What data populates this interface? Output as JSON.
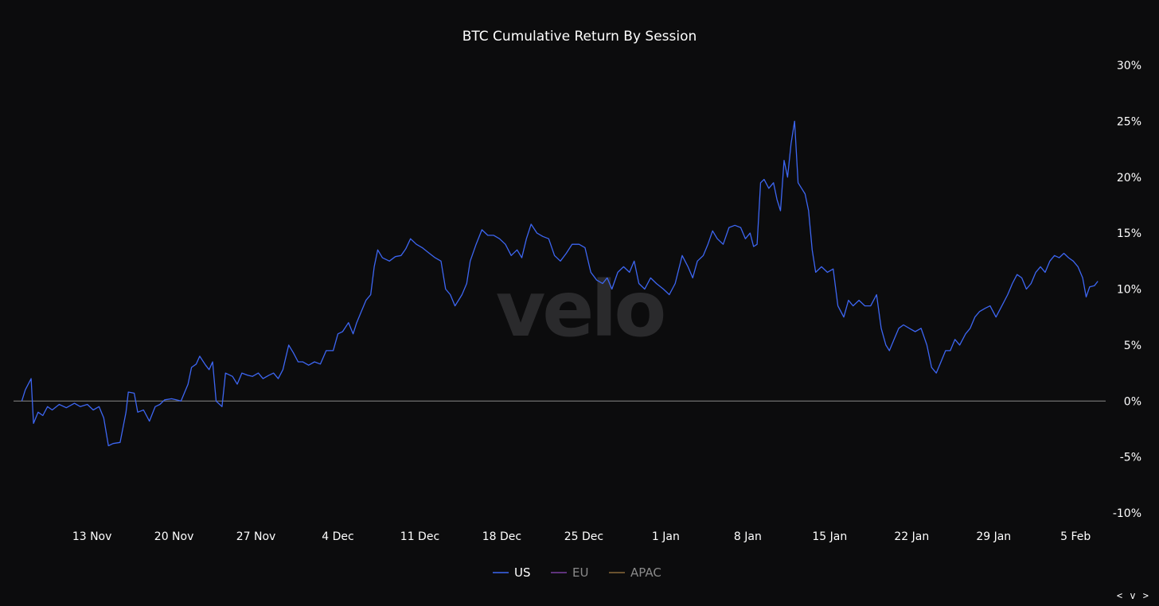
{
  "chart_data": {
    "type": "line",
    "title": "BTC Cumulative Return By Session",
    "ylim": [
      -10,
      30
    ],
    "y_ticks": [
      "30%",
      "25%",
      "20%",
      "15%",
      "10%",
      "5%",
      "0%",
      "-5%",
      "-10%"
    ],
    "y_tick_values": [
      30,
      25,
      20,
      15,
      10,
      5,
      0,
      -5,
      -10
    ],
    "x_ticks": [
      "13 Nov",
      "20 Nov",
      "27 Nov",
      "4 Dec",
      "11 Dec",
      "18 Dec",
      "25 Dec",
      "1 Jan",
      "8 Jan",
      "15 Jan",
      "22 Jan",
      "29 Jan",
      "5 Feb"
    ],
    "x_tick_days": [
      13,
      20,
      27,
      34,
      41,
      48,
      55,
      62,
      69,
      76,
      83,
      90,
      97
    ],
    "x_range_days": [
      6.5,
      99.5
    ],
    "zero_line": true,
    "legend_position": "bottom-center",
    "series": [
      {
        "name": "US",
        "color": "#3d66f2",
        "points": [
          [
            7.0,
            0.0
          ],
          [
            7.3,
            1.0
          ],
          [
            7.8,
            2.0
          ],
          [
            8.0,
            -2.0
          ],
          [
            8.4,
            -1.0
          ],
          [
            8.8,
            -1.3
          ],
          [
            9.2,
            -0.5
          ],
          [
            9.6,
            -0.8
          ],
          [
            10.2,
            -0.3
          ],
          [
            10.8,
            -0.6
          ],
          [
            11.5,
            -0.2
          ],
          [
            12.0,
            -0.5
          ],
          [
            12.6,
            -0.3
          ],
          [
            13.1,
            -0.8
          ],
          [
            13.6,
            -0.5
          ],
          [
            14.0,
            -1.5
          ],
          [
            14.4,
            -4.0
          ],
          [
            14.8,
            -3.8
          ],
          [
            15.4,
            -3.7
          ],
          [
            15.9,
            -1.0
          ],
          [
            16.1,
            0.8
          ],
          [
            16.6,
            0.7
          ],
          [
            16.9,
            -1.0
          ],
          [
            17.4,
            -0.8
          ],
          [
            17.9,
            -1.8
          ],
          [
            18.4,
            -0.5
          ],
          [
            18.8,
            -0.3
          ],
          [
            19.2,
            0.1
          ],
          [
            19.8,
            0.2
          ],
          [
            20.2,
            0.1
          ],
          [
            20.6,
            0.0
          ],
          [
            21.2,
            1.5
          ],
          [
            21.5,
            3.0
          ],
          [
            21.9,
            3.3
          ],
          [
            22.2,
            4.0
          ],
          [
            22.7,
            3.2
          ],
          [
            23.0,
            2.8
          ],
          [
            23.3,
            3.5
          ],
          [
            23.6,
            0.0
          ],
          [
            24.1,
            -0.5
          ],
          [
            24.4,
            2.5
          ],
          [
            25.0,
            2.2
          ],
          [
            25.4,
            1.5
          ],
          [
            25.8,
            2.5
          ],
          [
            26.3,
            2.3
          ],
          [
            26.7,
            2.2
          ],
          [
            27.2,
            2.5
          ],
          [
            27.6,
            2.0
          ],
          [
            28.1,
            2.3
          ],
          [
            28.5,
            2.5
          ],
          [
            28.9,
            2.0
          ],
          [
            29.3,
            2.8
          ],
          [
            29.8,
            5.0
          ],
          [
            30.2,
            4.3
          ],
          [
            30.6,
            3.5
          ],
          [
            31.0,
            3.5
          ],
          [
            31.5,
            3.2
          ],
          [
            32.0,
            3.5
          ],
          [
            32.5,
            3.3
          ],
          [
            33.0,
            4.5
          ],
          [
            33.6,
            4.5
          ],
          [
            34.0,
            6.0
          ],
          [
            34.4,
            6.2
          ],
          [
            34.9,
            7.0
          ],
          [
            35.3,
            6.0
          ],
          [
            35.6,
            7.0
          ],
          [
            36.0,
            8.0
          ],
          [
            36.4,
            9.0
          ],
          [
            36.8,
            9.5
          ],
          [
            37.1,
            12.0
          ],
          [
            37.4,
            13.5
          ],
          [
            37.8,
            12.8
          ],
          [
            38.4,
            12.5
          ],
          [
            38.9,
            12.9
          ],
          [
            39.4,
            13.0
          ],
          [
            39.8,
            13.6
          ],
          [
            40.2,
            14.5
          ],
          [
            40.7,
            14.0
          ],
          [
            41.2,
            13.7
          ],
          [
            41.8,
            13.2
          ],
          [
            42.3,
            12.8
          ],
          [
            42.8,
            12.5
          ],
          [
            43.2,
            10.0
          ],
          [
            43.6,
            9.5
          ],
          [
            44.0,
            8.5
          ],
          [
            44.3,
            9.0
          ],
          [
            44.6,
            9.5
          ],
          [
            45.0,
            10.5
          ],
          [
            45.3,
            12.5
          ],
          [
            45.8,
            14.0
          ],
          [
            46.3,
            15.3
          ],
          [
            46.8,
            14.8
          ],
          [
            47.3,
            14.8
          ],
          [
            47.8,
            14.5
          ],
          [
            48.3,
            14.0
          ],
          [
            48.8,
            13.0
          ],
          [
            49.3,
            13.5
          ],
          [
            49.7,
            12.8
          ],
          [
            50.1,
            14.5
          ],
          [
            50.5,
            15.8
          ],
          [
            51.0,
            15.0
          ],
          [
            51.5,
            14.7
          ],
          [
            52.0,
            14.5
          ],
          [
            52.5,
            13.0
          ],
          [
            53.0,
            12.5
          ],
          [
            53.5,
            13.2
          ],
          [
            54.0,
            14.0
          ],
          [
            54.6,
            14.0
          ],
          [
            55.1,
            13.7
          ],
          [
            55.6,
            11.5
          ],
          [
            56.1,
            10.8
          ],
          [
            56.6,
            10.5
          ],
          [
            57.0,
            11.0
          ],
          [
            57.4,
            10.0
          ],
          [
            57.9,
            11.5
          ],
          [
            58.4,
            12.0
          ],
          [
            58.9,
            11.5
          ],
          [
            59.3,
            12.5
          ],
          [
            59.7,
            10.5
          ],
          [
            60.2,
            10.0
          ],
          [
            60.7,
            11.0
          ],
          [
            61.2,
            10.5
          ],
          [
            61.8,
            10.0
          ],
          [
            62.3,
            9.5
          ],
          [
            62.8,
            10.5
          ],
          [
            63.4,
            13.0
          ],
          [
            63.9,
            12.0
          ],
          [
            64.3,
            11.0
          ],
          [
            64.7,
            12.5
          ],
          [
            65.2,
            13.0
          ],
          [
            65.6,
            14.0
          ],
          [
            66.0,
            15.2
          ],
          [
            66.4,
            14.5
          ],
          [
            66.9,
            14.0
          ],
          [
            67.4,
            15.5
          ],
          [
            67.9,
            15.7
          ],
          [
            68.4,
            15.5
          ],
          [
            68.8,
            14.5
          ],
          [
            69.2,
            15.0
          ],
          [
            69.5,
            13.8
          ],
          [
            69.8,
            14.0
          ],
          [
            70.1,
            19.5
          ],
          [
            70.4,
            19.8
          ],
          [
            70.8,
            19.0
          ],
          [
            71.2,
            19.5
          ],
          [
            71.5,
            18.0
          ],
          [
            71.8,
            17.0
          ],
          [
            72.1,
            21.5
          ],
          [
            72.4,
            20.0
          ],
          [
            72.7,
            23.0
          ],
          [
            73.0,
            25.0
          ],
          [
            73.3,
            19.5
          ],
          [
            73.6,
            19.0
          ],
          [
            73.9,
            18.5
          ],
          [
            74.2,
            17.0
          ],
          [
            74.5,
            13.5
          ],
          [
            74.8,
            11.5
          ],
          [
            75.3,
            12.0
          ],
          [
            75.8,
            11.5
          ],
          [
            76.3,
            11.8
          ],
          [
            76.7,
            8.5
          ],
          [
            77.2,
            7.5
          ],
          [
            77.6,
            9.0
          ],
          [
            78.0,
            8.5
          ],
          [
            78.5,
            9.0
          ],
          [
            79.0,
            8.5
          ],
          [
            79.5,
            8.5
          ],
          [
            80.0,
            9.5
          ],
          [
            80.4,
            6.5
          ],
          [
            80.8,
            5.0
          ],
          [
            81.1,
            4.5
          ],
          [
            81.5,
            5.5
          ],
          [
            81.9,
            6.5
          ],
          [
            82.3,
            6.8
          ],
          [
            82.8,
            6.5
          ],
          [
            83.3,
            6.2
          ],
          [
            83.8,
            6.5
          ],
          [
            84.3,
            5.0
          ],
          [
            84.7,
            3.0
          ],
          [
            85.1,
            2.5
          ],
          [
            85.5,
            3.5
          ],
          [
            85.9,
            4.5
          ],
          [
            86.3,
            4.5
          ],
          [
            86.7,
            5.5
          ],
          [
            87.1,
            5.0
          ],
          [
            87.6,
            6.0
          ],
          [
            88.0,
            6.5
          ],
          [
            88.4,
            7.5
          ],
          [
            88.8,
            8.0
          ],
          [
            89.3,
            8.3
          ],
          [
            89.7,
            8.5
          ],
          [
            90.2,
            7.5
          ],
          [
            90.7,
            8.5
          ],
          [
            91.2,
            9.5
          ],
          [
            91.6,
            10.5
          ],
          [
            92.0,
            11.3
          ],
          [
            92.4,
            11.0
          ],
          [
            92.8,
            10.0
          ],
          [
            93.2,
            10.5
          ],
          [
            93.6,
            11.5
          ],
          [
            94.0,
            12.0
          ],
          [
            94.4,
            11.5
          ],
          [
            94.8,
            12.5
          ],
          [
            95.2,
            13.0
          ],
          [
            95.6,
            12.8
          ],
          [
            96.0,
            13.2
          ],
          [
            96.4,
            12.8
          ],
          [
            96.8,
            12.5
          ],
          [
            97.2,
            12.0
          ],
          [
            97.6,
            11.0
          ],
          [
            97.9,
            9.3
          ],
          [
            98.2,
            10.2
          ],
          [
            98.6,
            10.3
          ],
          [
            98.9,
            10.7
          ]
        ]
      },
      {
        "name": "EU",
        "color": "#7a3fa0",
        "points": []
      },
      {
        "name": "APAC",
        "color": "#8a6a3a",
        "points": []
      }
    ]
  },
  "watermark": "velo",
  "nav_widget": "< v >"
}
